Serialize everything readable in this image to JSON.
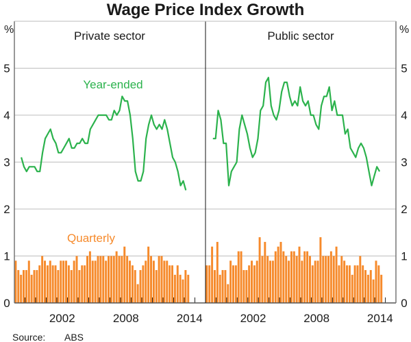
{
  "chart_data": {
    "type": "line+bar",
    "title": "Wage Price Index Growth",
    "unit_left": "%",
    "unit_right": "%",
    "ylim": [
      0,
      6
    ],
    "yticks": [
      0,
      1,
      2,
      3,
      4,
      5
    ],
    "xlim": [
      1998,
      2016
    ],
    "xtick_labels": [
      "2002",
      "2008",
      "2014"
    ],
    "source_label": "Source:",
    "source_value": "ABS",
    "colors": {
      "year_ended": "#2bb24c",
      "quarterly": "#f68a2b",
      "grid": "#bdbdbd"
    },
    "series_labels": {
      "year_ended": "Year-ended",
      "quarterly": "Quarterly"
    },
    "panels": [
      {
        "title": "Private sector",
        "year_ended_start": 1998.65,
        "year_ended": [
          3.1,
          2.9,
          2.8,
          2.9,
          2.9,
          2.9,
          2.8,
          2.8,
          3.2,
          3.5,
          3.6,
          3.7,
          3.5,
          3.4,
          3.2,
          3.2,
          3.3,
          3.4,
          3.5,
          3.3,
          3.3,
          3.4,
          3.4,
          3.5,
          3.4,
          3.4,
          3.7,
          3.8,
          3.9,
          4.0,
          4.0,
          4.0,
          4.0,
          3.9,
          3.9,
          4.1,
          4.0,
          4.1,
          4.4,
          4.3,
          4.3,
          4.0,
          3.5,
          2.8,
          2.6,
          2.6,
          2.8,
          3.5,
          3.8,
          4.0,
          3.8,
          3.7,
          3.8,
          3.7,
          3.9,
          3.7,
          3.4,
          3.1,
          3.0,
          2.8,
          2.5,
          2.6,
          2.4
        ],
        "quarterly_start": 1998.0,
        "quarterly": [
          0.9,
          0.7,
          0.6,
          0.7,
          0.7,
          0.9,
          0.6,
          0.7,
          0.7,
          0.8,
          1.0,
          0.9,
          0.8,
          0.9,
          0.8,
          0.8,
          0.7,
          0.9,
          0.9,
          0.9,
          0.8,
          0.7,
          0.9,
          1.0,
          0.7,
          0.8,
          0.8,
          1.0,
          1.1,
          0.9,
          0.9,
          1.0,
          1.0,
          1.0,
          0.9,
          1.0,
          1.0,
          1.0,
          1.1,
          1.0,
          1.0,
          1.2,
          1.0,
          0.9,
          0.8,
          0.7,
          0.4,
          0.7,
          0.8,
          0.9,
          1.2,
          1.0,
          0.9,
          0.7,
          1.0,
          1.0,
          0.9,
          0.9,
          0.8,
          0.8,
          0.6,
          0.8,
          0.6,
          0.5,
          0.7,
          0.6
        ]
      },
      {
        "title": "Public sector",
        "year_ended_start": 1998.7,
        "year_ended": [
          3.5,
          3.5,
          4.1,
          3.9,
          3.4,
          3.4,
          2.5,
          2.8,
          2.9,
          3.0,
          3.7,
          4.0,
          3.8,
          3.6,
          3.3,
          3.1,
          3.2,
          3.5,
          4.1,
          4.2,
          4.7,
          4.8,
          4.2,
          4.0,
          3.9,
          4.1,
          4.5,
          4.7,
          4.7,
          4.4,
          4.2,
          4.3,
          4.2,
          4.6,
          4.3,
          4.2,
          4.3,
          4.0,
          4.0,
          3.8,
          3.7,
          4.2,
          4.4,
          4.4,
          4.6,
          4.1,
          4.3,
          4.0,
          4.0,
          4.0,
          3.6,
          3.7,
          3.3,
          3.2,
          3.1,
          3.3,
          3.4,
          3.3,
          3.1,
          2.8,
          2.5,
          2.7,
          2.9,
          2.8
        ],
        "quarterly_start": 1998.0,
        "quarterly": [
          0.8,
          0.8,
          1.2,
          0.7,
          1.3,
          0.6,
          0.7,
          0.7,
          0.4,
          0.9,
          0.8,
          0.8,
          1.1,
          1.1,
          0.7,
          0.7,
          0.8,
          0.9,
          0.8,
          0.9,
          1.4,
          1.0,
          1.3,
          1.0,
          0.9,
          0.9,
          1.1,
          1.2,
          1.3,
          1.1,
          1.0,
          0.9,
          1.1,
          1.1,
          1.0,
          1.2,
          0.9,
          1.1,
          1.1,
          1.0,
          0.8,
          0.9,
          0.9,
          1.4,
          1.0,
          1.0,
          1.0,
          1.1,
          1.0,
          1.2,
          0.8,
          1.0,
          0.9,
          0.8,
          0.8,
          0.6,
          0.8,
          0.8,
          1.0,
          0.8,
          0.7,
          0.6,
          0.7,
          0.5,
          0.9,
          0.8,
          0.6
        ]
      }
    ]
  }
}
